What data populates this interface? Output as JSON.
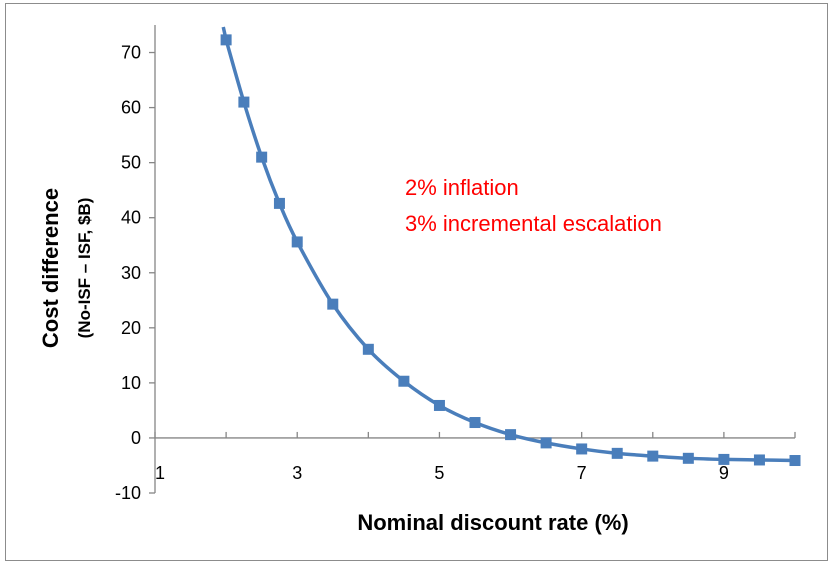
{
  "chart_data": {
    "type": "line",
    "title": "",
    "xlabel": "Nominal discount rate (%)",
    "ylabel": "Cost difference",
    "ylabel_sub": "(No-ISF – ISF, $B)",
    "xlim": [
      1,
      10
    ],
    "ylim": [
      -10,
      75
    ],
    "xticks": [
      1,
      3,
      5,
      7,
      9
    ],
    "yticks": [
      -10,
      0,
      10,
      20,
      30,
      40,
      50,
      60,
      70
    ],
    "x_tick_labels": [
      "1",
      "3",
      "5",
      "7",
      "9"
    ],
    "y_tick_labels": [
      "-10",
      "0",
      "10",
      "20",
      "30",
      "40",
      "50",
      "60",
      "70"
    ],
    "grid": false,
    "legend": "none",
    "marker": "square",
    "line_color": "#4a7ebb",
    "annotations": [
      {
        "text": "2% inflation",
        "color": "#ff0000"
      },
      {
        "text": "3% incremental escalation",
        "color": "#ff0000"
      }
    ],
    "series": [
      {
        "x": [
          2.0,
          2.25,
          2.5,
          2.75,
          3.0,
          3.5,
          4.0,
          4.5,
          5.0,
          5.5,
          6.0,
          6.5,
          7.0,
          7.5,
          8.0,
          8.5,
          9.0,
          9.5,
          10.0
        ],
        "values": [
          72.3,
          61.0,
          51.0,
          42.6,
          35.6,
          24.3,
          16.1,
          10.3,
          5.9,
          2.8,
          0.6,
          -0.9,
          -2.0,
          -2.8,
          -3.3,
          -3.7,
          -3.9,
          -4.0,
          -4.1
        ]
      }
    ]
  }
}
